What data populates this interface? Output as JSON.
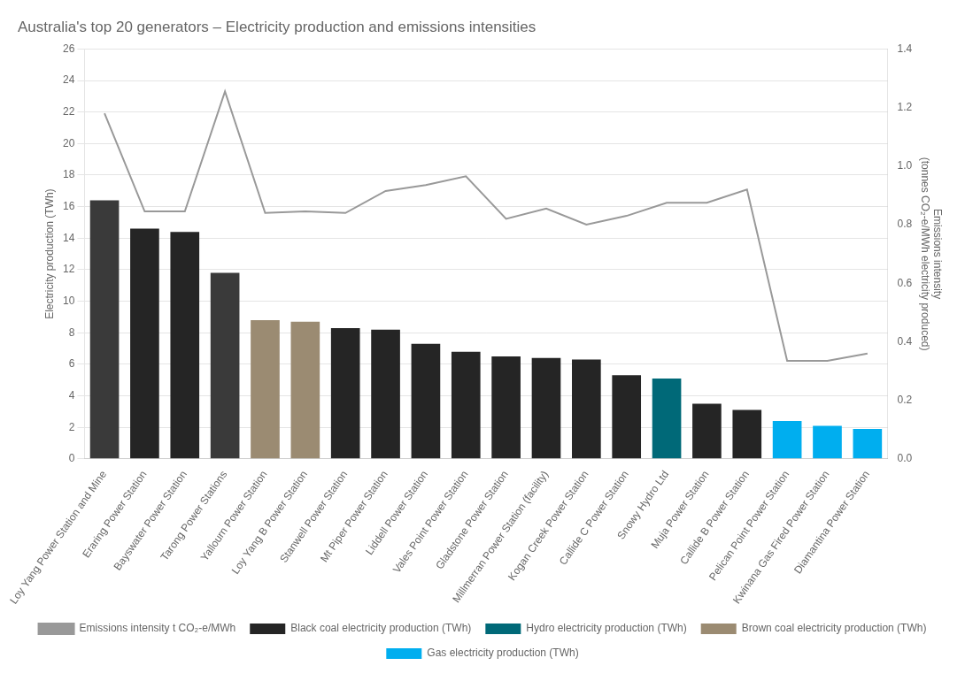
{
  "chart_data": {
    "type": "bar",
    "title": "Australia's top 20 generators – Electricity production and emissions intensities",
    "categories": [
      "Loy Yang Power Station and Mine",
      "Eraring Power Station",
      "Bayswater Power Station",
      "Tarong Power Stations",
      "Yallourn Power Station",
      "Loy Yang B Power Station",
      "Stanwell Power Station",
      "Mt Piper Power Station",
      "Liddell Power Station",
      "Vales Point Power Station",
      "Gladstone Power Station",
      "Millmerran Power Station (facility)",
      "Kogan Creek Power Station",
      "Callide C Power Station",
      "Snowy Hydro Ltd",
      "Muja Power Station",
      "Callide B Power Station",
      "Pelican Point Power Station",
      "Kwinana Gas Fired Power Station",
      "Diamantina Power Station"
    ],
    "series": [
      {
        "name": "Black coal electricity production (TWh)",
        "type": "bar",
        "color": "#252525",
        "values": [
          null,
          14.6,
          14.4,
          null,
          null,
          null,
          8.3,
          8.2,
          7.3,
          6.8,
          6.5,
          6.4,
          6.3,
          5.3,
          null,
          3.5,
          3.1,
          null,
          null,
          null
        ]
      },
      {
        "name": "Hydro electricity production (TWh)",
        "type": "bar",
        "color": "#006978",
        "values": [
          null,
          null,
          null,
          null,
          null,
          null,
          null,
          null,
          null,
          null,
          null,
          null,
          null,
          null,
          5.1,
          null,
          null,
          null,
          null,
          null
        ]
      },
      {
        "name": "Emissions intensity t CO₂-e/MWh",
        "type": "line",
        "axis": "y2",
        "color": "#999999",
        "values": [
          1.18,
          0.845,
          0.845,
          1.255,
          0.84,
          0.845,
          0.84,
          0.915,
          0.935,
          0.965,
          0.82,
          0.855,
          0.8,
          0.83,
          0.875,
          0.875,
          0.92,
          0.335,
          0.335,
          0.36
        ]
      },
      {
        "name": "Brown coal electricity production (TWh)",
        "type": "bar",
        "color": "#9B8B72",
        "values": [
          null,
          null,
          null,
          null,
          8.8,
          8.7,
          null,
          null,
          null,
          null,
          null,
          null,
          null,
          null,
          null,
          null,
          null,
          null,
          null,
          null
        ]
      },
      {
        "name": "Gas electricity production (TWh)",
        "type": "bar",
        "color": "#00AEEF",
        "values": [
          null,
          null,
          null,
          null,
          null,
          null,
          null,
          null,
          null,
          null,
          null,
          null,
          null,
          null,
          null,
          null,
          null,
          2.4,
          2.1,
          1.9
        ]
      },
      {
        "type": "bar",
        "color": "#3A3A3A",
        "values": [
          16.4,
          null,
          null,
          11.8,
          null,
          null,
          null,
          null,
          null,
          null,
          null,
          null,
          null,
          null,
          null,
          null,
          null,
          null,
          null,
          null
        ]
      }
    ],
    "ylim": [
      0,
      26
    ],
    "yticks": [
      0,
      2,
      4,
      6,
      8,
      10,
      12,
      14,
      16,
      18,
      20,
      22,
      24,
      26
    ],
    "y2lim": [
      0,
      1.4
    ],
    "y2ticks": [
      {
        "value": 0,
        "label": "0.0"
      },
      0.2,
      0.4,
      0.6,
      0.8,
      {
        "value": 1,
        "label": "1.0"
      },
      1.2,
      1.4
    ],
    "ylabel": "Electricity production (TWh)",
    "y2label": "Emissions intensity\n(tonnes CO₂-e/MWh electricity produced)",
    "grid": true,
    "legend": "bottom"
  }
}
